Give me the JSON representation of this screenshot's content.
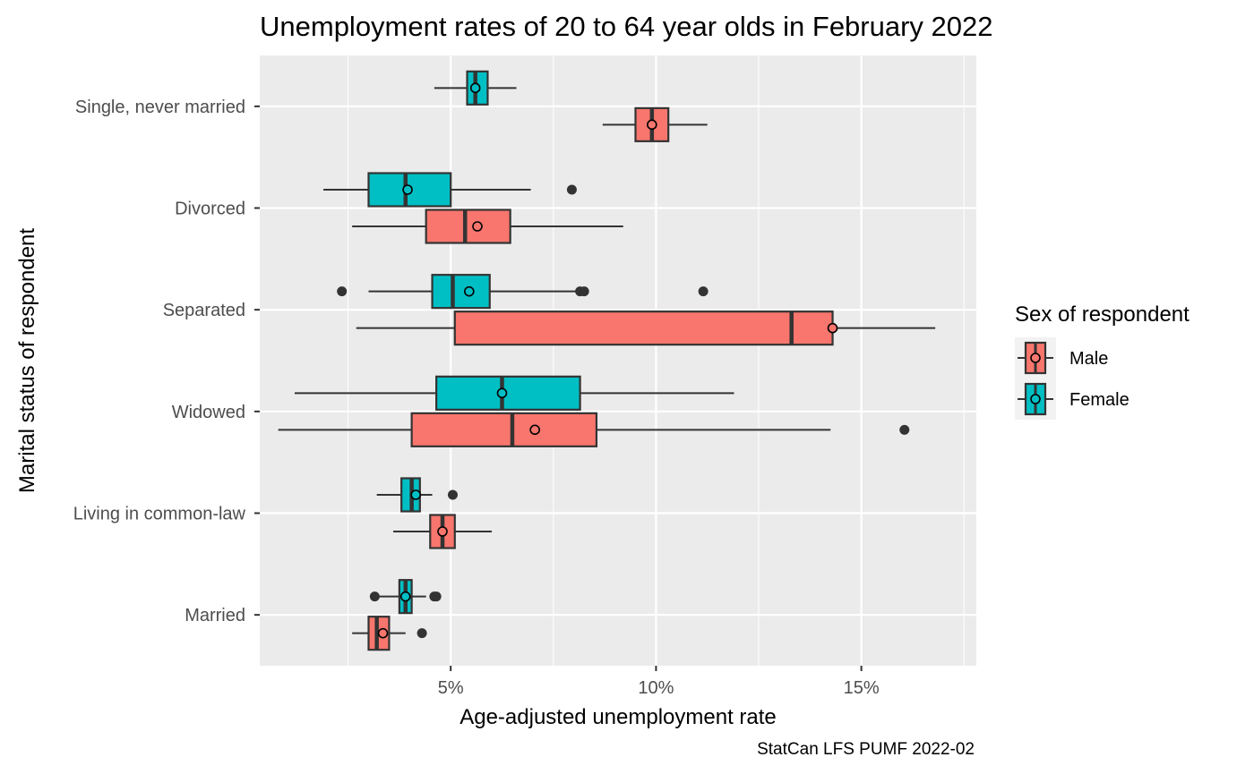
{
  "chart_data": {
    "type": "boxplot",
    "orientation": "horizontal",
    "title": "Unemployment rates of 20 to 64 year olds in February 2022",
    "xlabel": "Age-adjusted unemployment rate",
    "ylabel": "Marital status of respondent",
    "caption": "StatCan LFS PUMF 2022-02",
    "xlim": [
      0.35,
      17.8
    ],
    "xticks": [
      5,
      10,
      15
    ],
    "xtick_labels": [
      "5%",
      "10%",
      "15%"
    ],
    "xminor": [
      2.5,
      7.5,
      12.5,
      17.5
    ],
    "categories": [
      "Single, never married",
      "Divorced",
      "Separated",
      "Widowed",
      "Living in common-law",
      "Married"
    ],
    "legend": {
      "title": "Sex of respondent",
      "position": "right",
      "entries": [
        {
          "name": "Male",
          "color": "#F8766D"
        },
        {
          "name": "Female",
          "color": "#00BFC4"
        }
      ]
    },
    "series": [
      {
        "name": "Male",
        "color": "#F8766D",
        "boxes": [
          {
            "category": "Single, never married",
            "whisker_low": 8.7,
            "q1": 9.5,
            "median": 9.9,
            "q3": 10.3,
            "whisker_high": 11.25,
            "mean": 9.9,
            "outliers": []
          },
          {
            "category": "Divorced",
            "whisker_low": 2.6,
            "q1": 4.4,
            "median": 5.35,
            "q3": 6.45,
            "whisker_high": 9.2,
            "mean": 5.65,
            "outliers": []
          },
          {
            "category": "Separated",
            "whisker_low": 2.7,
            "q1": 5.1,
            "median": 13.3,
            "q3": 14.3,
            "whisker_high": 16.8,
            "mean": 14.3,
            "outliers": []
          },
          {
            "category": "Widowed",
            "whisker_low": 0.8,
            "q1": 4.05,
            "median": 6.5,
            "q3": 8.55,
            "whisker_high": 14.25,
            "mean": 7.05,
            "outliers": [
              16.05
            ]
          },
          {
            "category": "Living in common-law",
            "whisker_low": 3.6,
            "q1": 4.5,
            "median": 4.8,
            "q3": 5.1,
            "whisker_high": 6.0,
            "mean": 4.8,
            "outliers": []
          },
          {
            "category": "Married",
            "whisker_low": 2.6,
            "q1": 3.0,
            "median": 3.2,
            "q3": 3.5,
            "whisker_high": 3.9,
            "mean": 3.35,
            "outliers": [
              4.3
            ]
          }
        ]
      },
      {
        "name": "Female",
        "color": "#00BFC4",
        "boxes": [
          {
            "category": "Single, never married",
            "whisker_low": 4.6,
            "q1": 5.4,
            "median": 5.6,
            "q3": 5.9,
            "whisker_high": 6.6,
            "mean": 5.6,
            "outliers": []
          },
          {
            "category": "Divorced",
            "whisker_low": 1.9,
            "q1": 3.0,
            "median": 3.9,
            "q3": 5.0,
            "whisker_high": 6.95,
            "mean": 3.95,
            "outliers": [
              7.95
            ]
          },
          {
            "category": "Separated",
            "whisker_low": 3.0,
            "q1": 4.55,
            "median": 5.05,
            "q3": 5.95,
            "whisker_high": 8.05,
            "mean": 5.45,
            "outliers": [
              2.35,
              8.15,
              8.25,
              11.15
            ]
          },
          {
            "category": "Widowed",
            "whisker_low": 1.2,
            "q1": 4.65,
            "median": 6.25,
            "q3": 8.15,
            "whisker_high": 11.9,
            "mean": 6.25,
            "outliers": []
          },
          {
            "category": "Living in common-law",
            "whisker_low": 3.2,
            "q1": 3.8,
            "median": 4.05,
            "q3": 4.25,
            "whisker_high": 4.55,
            "mean": 4.15,
            "outliers": [
              5.05
            ]
          },
          {
            "category": "Married",
            "whisker_low": 3.1,
            "q1": 3.75,
            "median": 3.9,
            "q3": 4.05,
            "whisker_high": 4.4,
            "mean": 3.9,
            "outliers": [
              3.15,
              4.6,
              4.65
            ]
          }
        ]
      }
    ]
  }
}
